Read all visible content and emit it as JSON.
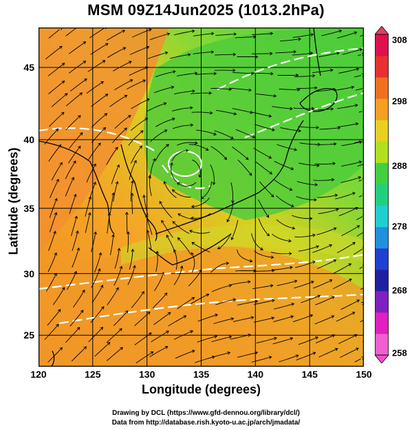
{
  "title": "MSM 09Z14Jun2025 (1013.2hPa)",
  "map": {
    "lon_range": [
      120,
      150
    ],
    "lat_range": [
      22.5,
      47.6
    ],
    "x_label": "Longitude (degrees)",
    "y_label": "Latitude  (degrees)",
    "x_ticks": [
      "120",
      "125",
      "130",
      "135",
      "140",
      "145",
      "150"
    ],
    "y_ticks": [
      "25",
      "30",
      "35",
      "40",
      "45"
    ],
    "gridlines": true,
    "field": "temperature (K) with wind streamlines and pressure contours"
  },
  "colorbar": {
    "min": 258,
    "max": 308,
    "ticks": [
      "308",
      "298",
      "288",
      "278",
      "268",
      "258"
    ],
    "colors": [
      "#e01050",
      "#e83030",
      "#f07020",
      "#f4a020",
      "#e8d020",
      "#b0e020",
      "#40d040",
      "#20d080",
      "#20d0d0",
      "#2090e0",
      "#2040d0",
      "#2020a0",
      "#8020c0",
      "#e020c0",
      "#f060d0"
    ]
  },
  "credits": {
    "line1": "Drawing by DCL (https://www.gfd-dennou.org/library/dcl/)",
    "line2": "Data from http://database.rish.kyoto-u.ac.jp/arch/jmadata/"
  }
}
